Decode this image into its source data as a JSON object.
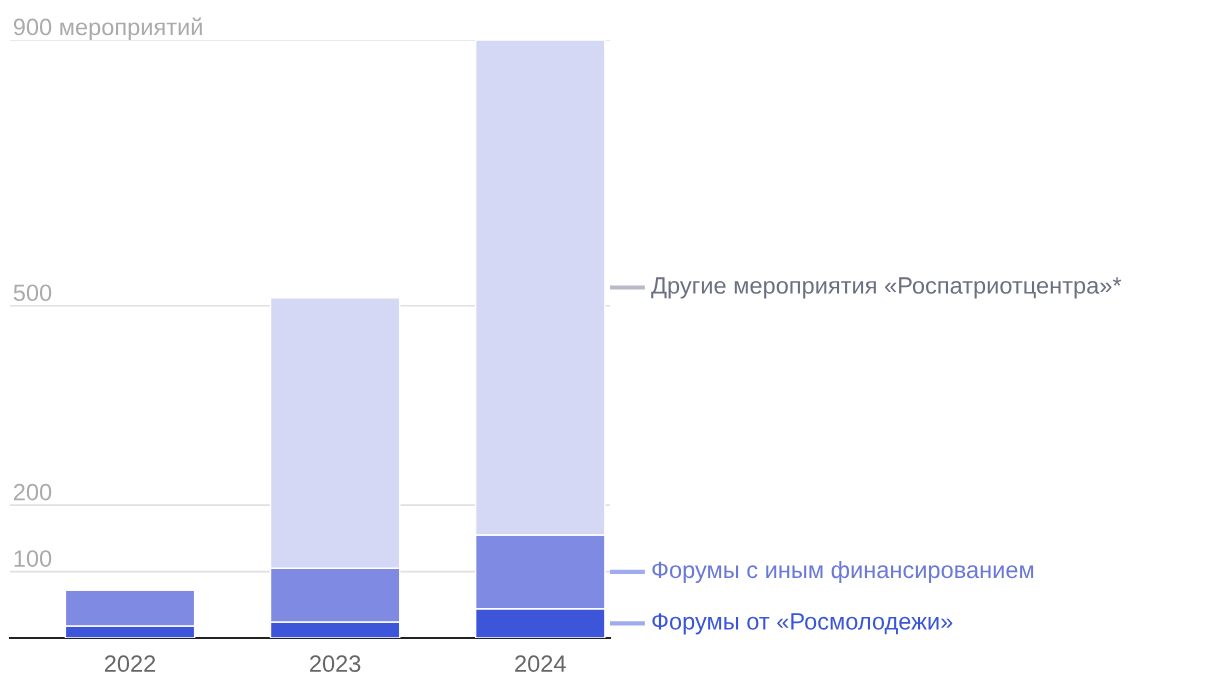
{
  "chart_data": {
    "type": "bar",
    "stacked": true,
    "categories": [
      "2022",
      "2023",
      "2024"
    ],
    "series": [
      {
        "name": "Форумы от «Росмолодежи»",
        "color": "#3d55d9",
        "values": [
          18,
          24,
          44
        ]
      },
      {
        "name": "Форумы с иным финансированием",
        "color": "#7f8be3",
        "values": [
          54,
          81,
          111
        ]
      },
      {
        "name": "Другие мероприятия «Роспатриотцентра»*",
        "color": "#d4d8f5",
        "values": [
          null,
          407,
          745
        ]
      }
    ],
    "ylim": [
      0,
      900
    ],
    "yticks": [
      100,
      200,
      500,
      {
        "value": 900,
        "label": "900 мероприятий"
      }
    ],
    "grid": "y",
    "legend": "right"
  }
}
